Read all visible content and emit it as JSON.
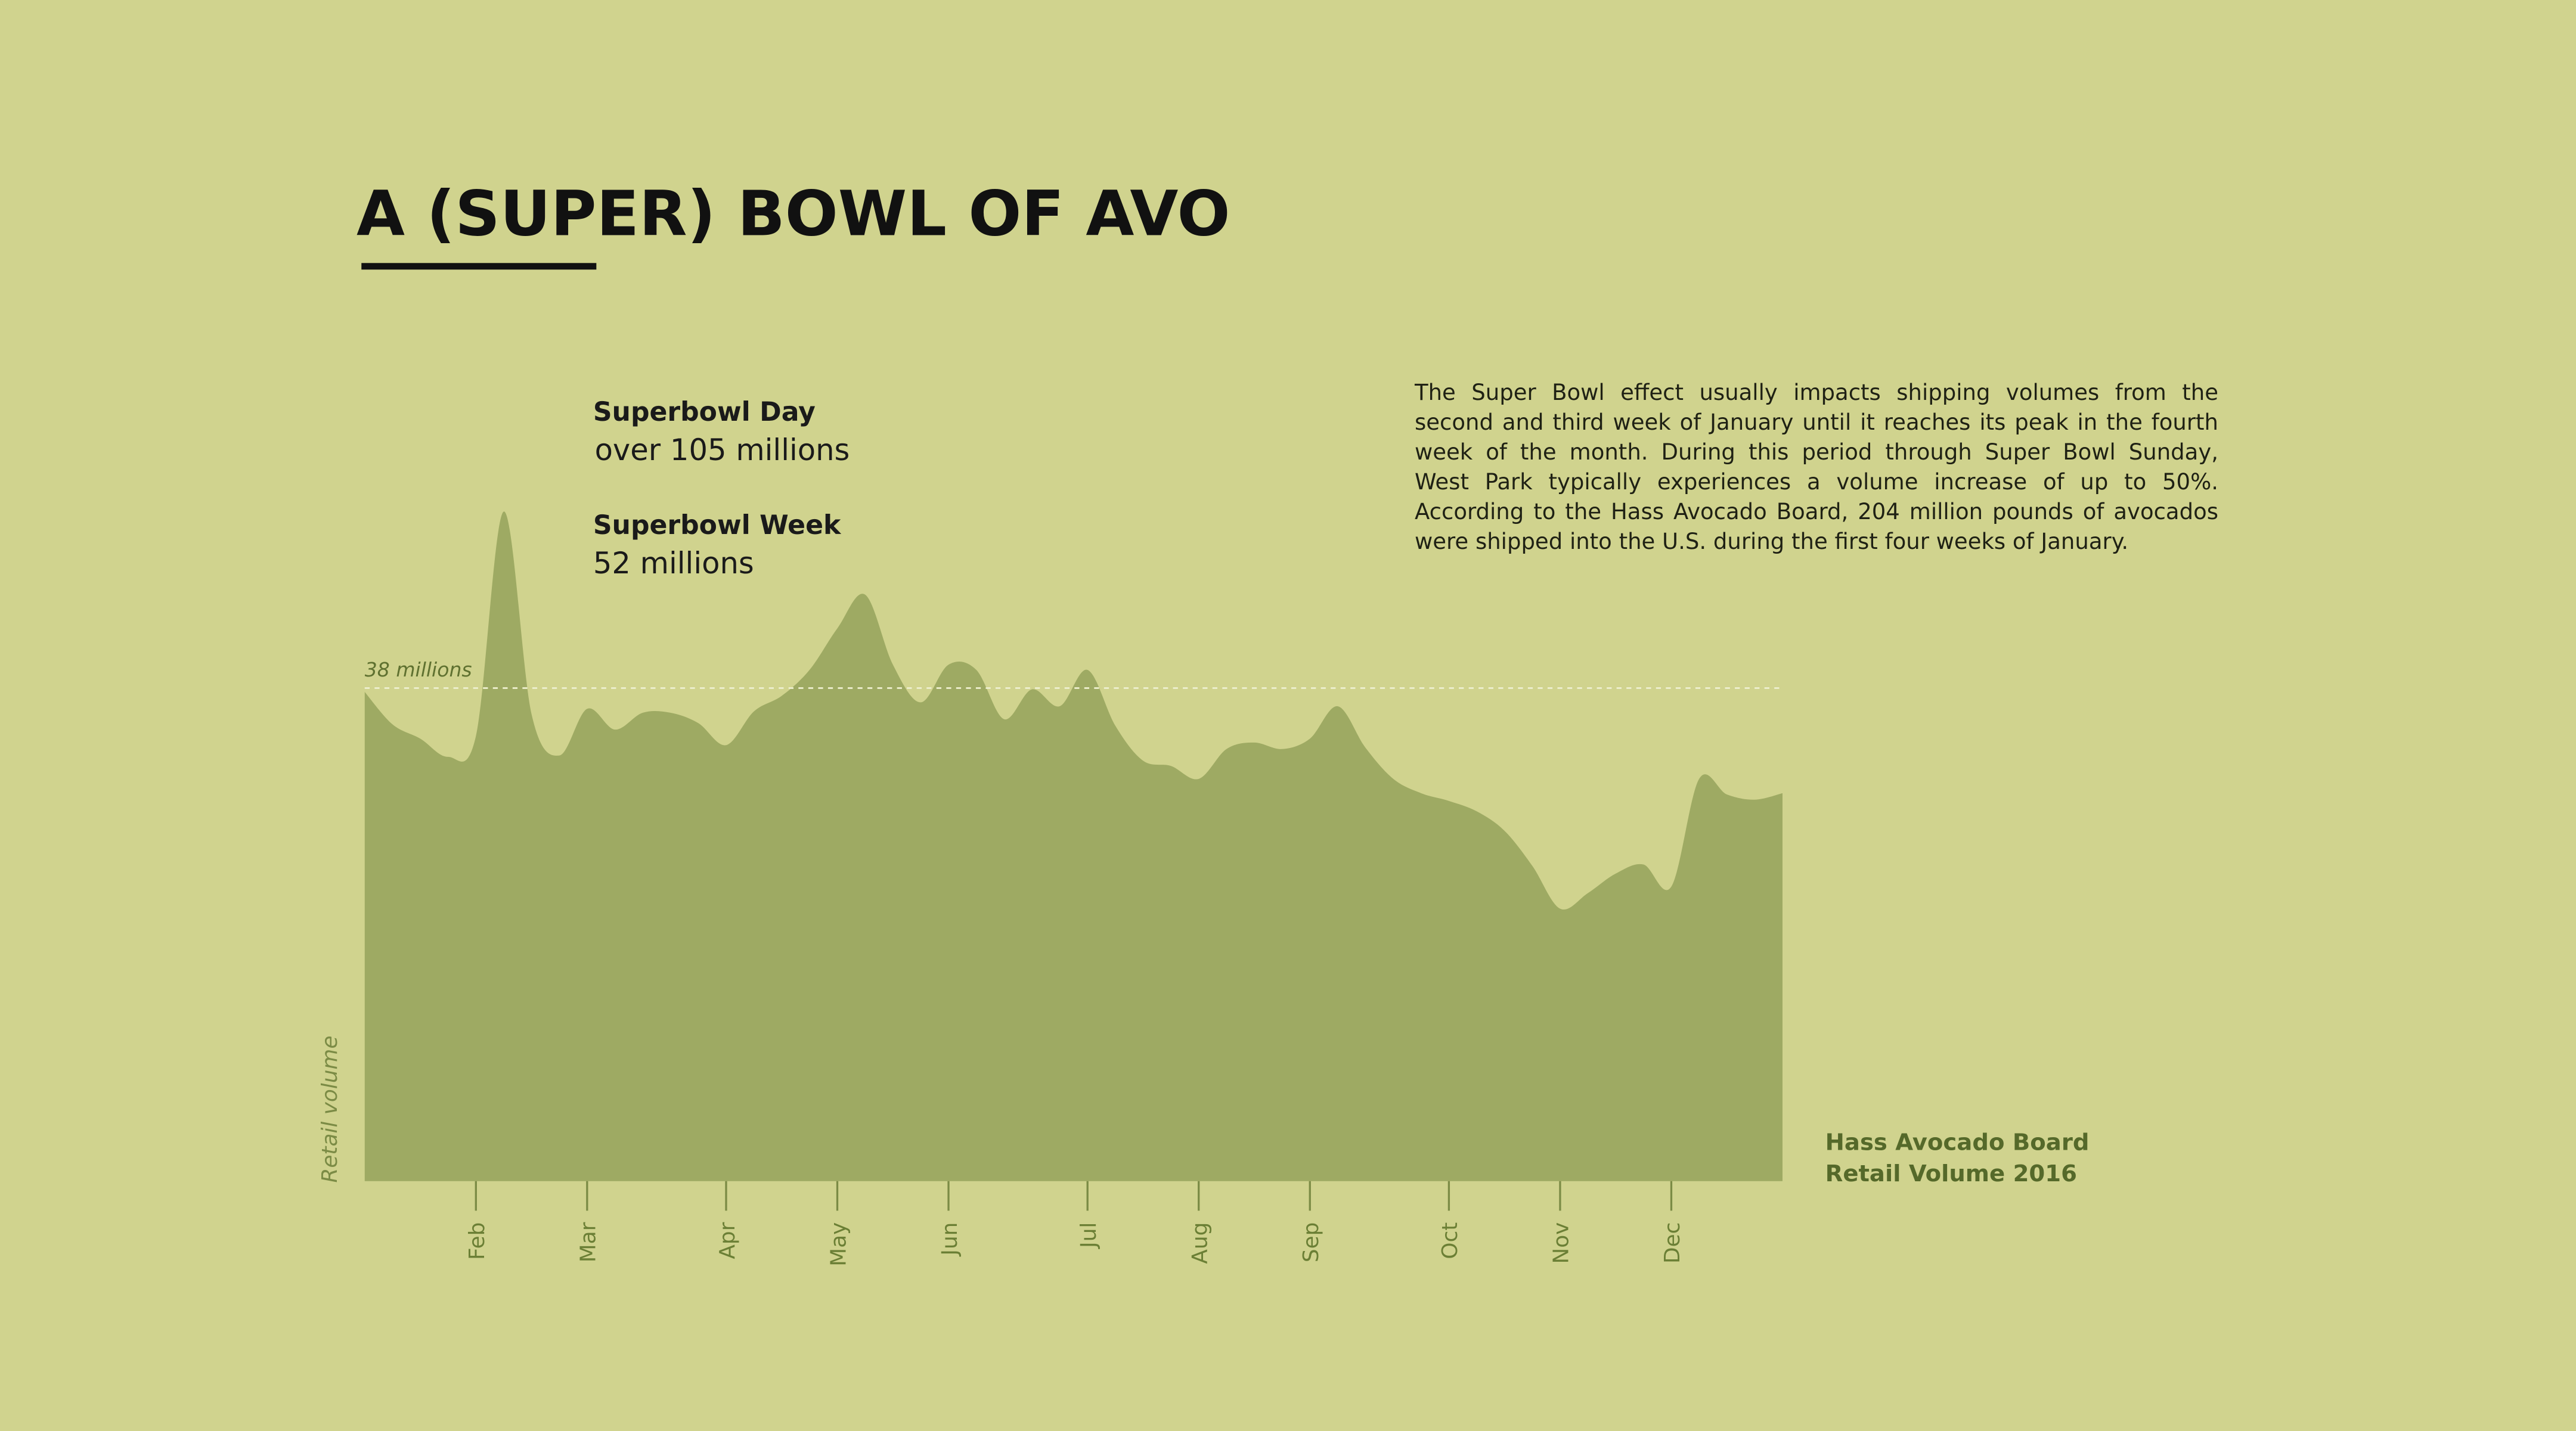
{
  "chart_data": {
    "type": "area",
    "title": "A (SUPER) BOWL OF AVO",
    "y_label": "Retail volume",
    "annotations": [
      {
        "title": "Superbowl Day",
        "text": "over 105 millions"
      },
      {
        "title": "Superbowl Week",
        "text": "52 millions"
      }
    ],
    "description": "The Super Bowl effect usually impacts shipping volumes from the second and third week of January until it reaches its peak in the fourth week of the month. During this period through Super Bowl Sunday, West Park typically experiences a volume increase of up to 50%. According to the Hass Avocado Board, 204 million pounds of avocados were shipped into the U.S. during the first four weeks of January.",
    "source": [
      "Hass Avocado Board",
      "Retail Volume 2016"
    ],
    "reference_line": {
      "value": 38,
      "label": "38 millions"
    },
    "categories": [
      null,
      null,
      null,
      null,
      "Feb",
      null,
      null,
      null,
      "Mar",
      null,
      null,
      null,
      null,
      "Apr",
      null,
      null,
      null,
      "May",
      null,
      null,
      null,
      "Jun",
      null,
      null,
      null,
      null,
      "Jul",
      null,
      null,
      null,
      "Aug",
      null,
      null,
      null,
      "Sep",
      null,
      null,
      null,
      null,
      "Oct",
      null,
      null,
      null,
      "Nov",
      null,
      null,
      null,
      "Dec",
      null,
      null,
      null,
      null
    ],
    "values": [
      37.7,
      35.2,
      34.1,
      32.7,
      34.3,
      51.6,
      36.0,
      32.8,
      36.4,
      34.8,
      36.1,
      36.1,
      35.3,
      33.6,
      36.2,
      37.4,
      39.4,
      42.6,
      45.2,
      39.8,
      36.9,
      39.8,
      39.4,
      35.6,
      37.9,
      36.6,
      39.4,
      35.1,
      32.4,
      32.0,
      31.0,
      33.3,
      33.8,
      33.3,
      34.1,
      36.6,
      33.4,
      31.0,
      29.9,
      29.3,
      28.5,
      27.0,
      24.3,
      21.0,
      22.2,
      23.7,
      24.4,
      22.7,
      31.0,
      29.8,
      29.4,
      29.9
    ],
    "color": "#9eaa63",
    "ylim": [
      0,
      60
    ]
  }
}
